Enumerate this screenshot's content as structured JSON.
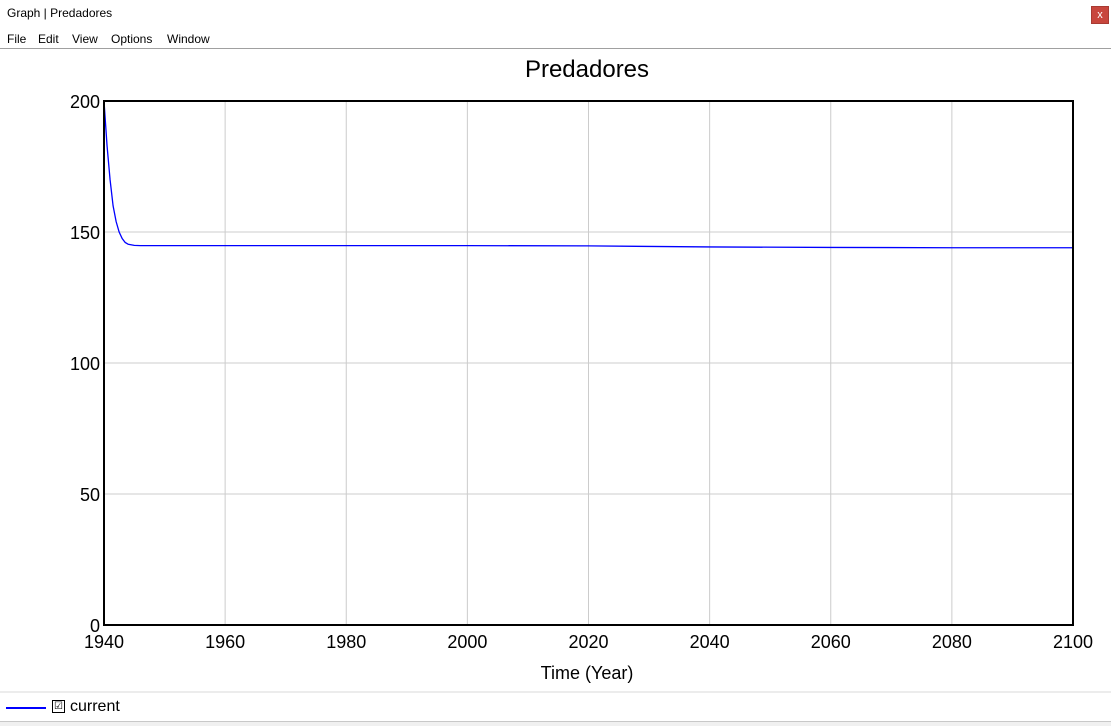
{
  "window": {
    "title": "Graph | Predadores",
    "close_glyph": "x"
  },
  "menu": {
    "items": [
      "File",
      "Edit",
      "View",
      "Options",
      "Window"
    ]
  },
  "legend": {
    "check_glyph": "☑",
    "label": "current",
    "color": "#0000ff"
  },
  "chart_data": {
    "type": "line",
    "title": "Predadores",
    "xlabel": "Time (Year)",
    "ylabel": "",
    "xlim": [
      1940,
      2100
    ],
    "ylim": [
      0,
      200
    ],
    "x_ticks": [
      "1940",
      "1960",
      "1980",
      "2000",
      "2020",
      "2040",
      "2060",
      "2080",
      "2100"
    ],
    "y_ticks": [
      "0",
      "50",
      "100",
      "150",
      "200"
    ],
    "grid": true,
    "series": [
      {
        "name": "current",
        "color": "#0000ff",
        "x": [
          1940,
          1940.5,
          1941,
          1941.5,
          1942,
          1942.5,
          1943,
          1943.5,
          1944,
          1945,
          1946,
          1950,
          1960,
          1980,
          2000,
          2020,
          2040,
          2060,
          2080,
          2100
        ],
        "y": [
          200,
          183,
          170,
          160,
          154,
          150,
          147.5,
          146,
          145.3,
          144.9,
          144.8,
          144.8,
          144.8,
          144.8,
          144.8,
          144.7,
          144.3,
          144.1,
          144.0,
          144.0
        ]
      }
    ]
  }
}
